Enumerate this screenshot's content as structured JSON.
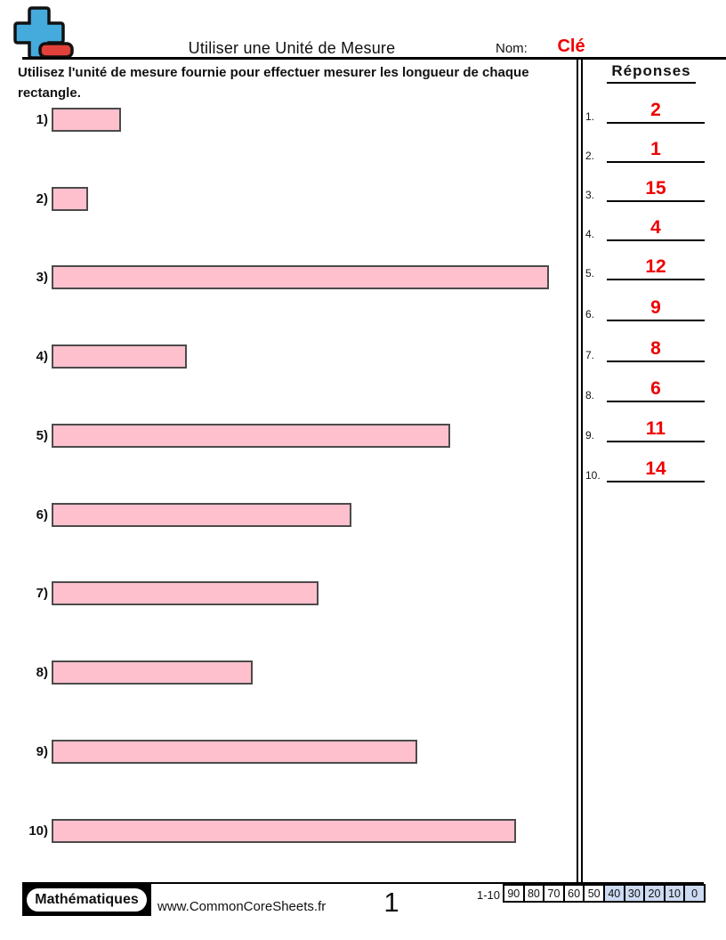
{
  "colors": {
    "logo_blue": "#45aadc",
    "logo_red": "#e2403a",
    "rect_fill": "#ffc0cd",
    "rect_border": "#4b4b4b",
    "answer_red": "#ee0000",
    "score_highlight": "#ccdaf2"
  },
  "header": {
    "title": "Utiliser une Unité de Mesure",
    "name_label": "Nom:",
    "name_value": "Clé"
  },
  "instructions": "Utilisez l'unité de mesure fournie pour effectuer mesurer les longueur de chaque rectangle.",
  "problems": [
    {
      "label": "1)",
      "units": 2
    },
    {
      "label": "2)",
      "units": 1
    },
    {
      "label": "3)",
      "units": 15
    },
    {
      "label": "4)",
      "units": 4
    },
    {
      "label": "5)",
      "units": 12
    },
    {
      "label": "6)",
      "units": 9
    },
    {
      "label": "7)",
      "units": 8
    },
    {
      "label": "8)",
      "units": 6
    },
    {
      "label": "9)",
      "units": 11
    },
    {
      "label": "10)",
      "units": 14
    }
  ],
  "answers": {
    "title": "Réponses",
    "items": [
      {
        "num": "1.",
        "value": "2"
      },
      {
        "num": "2.",
        "value": "1"
      },
      {
        "num": "3.",
        "value": "15"
      },
      {
        "num": "4.",
        "value": "4"
      },
      {
        "num": "5.",
        "value": "12"
      },
      {
        "num": "6.",
        "value": "9"
      },
      {
        "num": "7.",
        "value": "8"
      },
      {
        "num": "8.",
        "value": "6"
      },
      {
        "num": "9.",
        "value": "11"
      },
      {
        "num": "10.",
        "value": "14"
      }
    ]
  },
  "footer": {
    "brand": "Mathématiques",
    "website": "www.CommonCoreSheets.fr",
    "page": "1",
    "score_label": "1-10",
    "scores": [
      {
        "label": "90",
        "highlighted": false
      },
      {
        "label": "80",
        "highlighted": false
      },
      {
        "label": "70",
        "highlighted": false
      },
      {
        "label": "60",
        "highlighted": false
      },
      {
        "label": "50",
        "highlighted": false
      },
      {
        "label": "40",
        "highlighted": true
      },
      {
        "label": "30",
        "highlighted": true
      },
      {
        "label": "20",
        "highlighted": true
      },
      {
        "label": "10",
        "highlighted": true
      },
      {
        "label": "0",
        "highlighted": true
      }
    ]
  }
}
